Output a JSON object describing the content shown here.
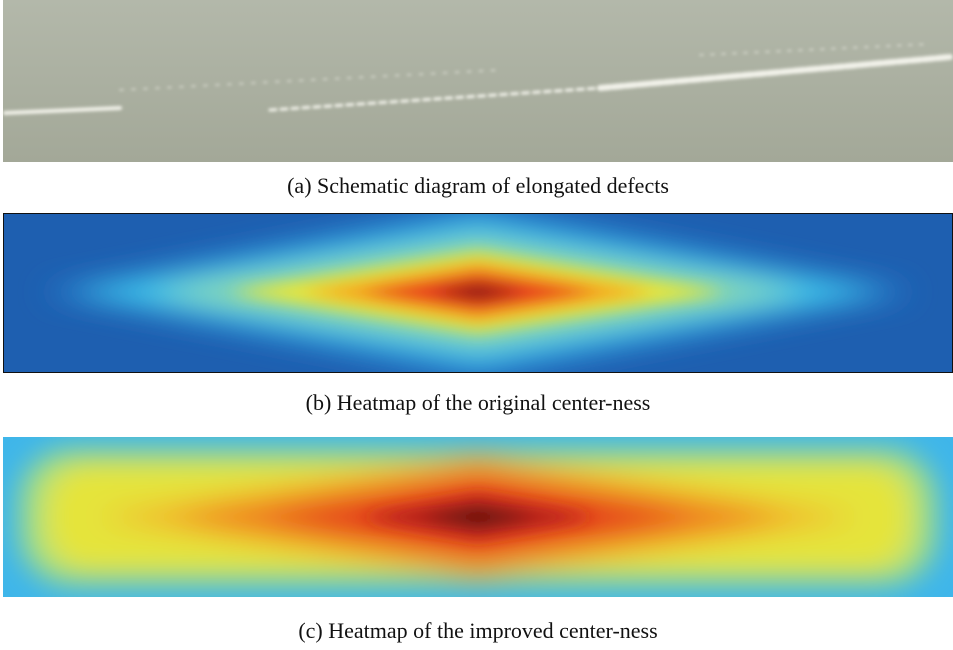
{
  "panels": [
    {
      "caption": "(a) Schematic diagram of elongated defects"
    },
    {
      "caption": "(b) Heatmap of the original center-ness"
    },
    {
      "caption": "(c) Heatmap of the improved center-ness"
    }
  ]
}
